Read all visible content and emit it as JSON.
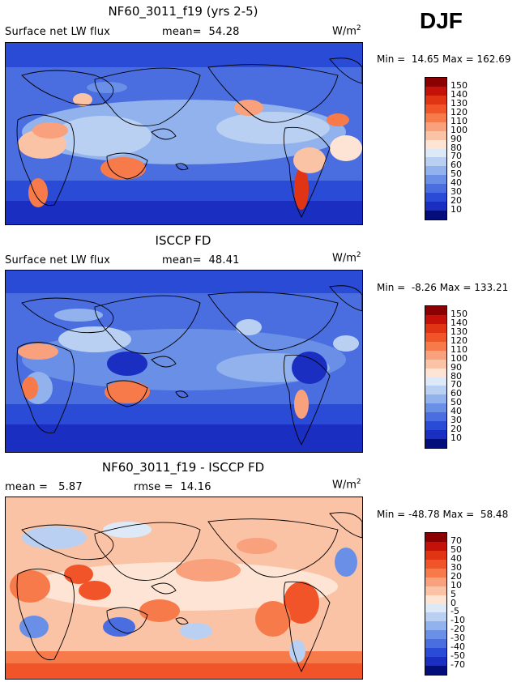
{
  "season": "DJF",
  "units_base": "W/m",
  "units_exp": "2",
  "panels": [
    {
      "title": "NF60_3011_f19 (yrs 2-5)",
      "left_label": "Surface net LW flux",
      "stat_label": "mean=",
      "stat_value": "54.28",
      "min_label": "Min =",
      "min_value": "14.65",
      "max_label": "Max =",
      "max_value": "162.69",
      "colorbar": [
        "150",
        "140",
        "130",
        "120",
        "110",
        "100",
        "90",
        "80",
        "70",
        "60",
        "50",
        "40",
        "30",
        "20",
        "10"
      ]
    },
    {
      "title": "ISCCP FD",
      "left_label": "Surface net LW flux",
      "stat_label": "mean=",
      "stat_value": "48.41",
      "min_label": "Min =",
      "min_value": "-8.26",
      "max_label": "Max =",
      "max_value": "133.21",
      "colorbar": [
        "150",
        "140",
        "130",
        "120",
        "110",
        "100",
        "90",
        "80",
        "70",
        "60",
        "50",
        "40",
        "30",
        "20",
        "10"
      ]
    },
    {
      "title": "NF60_3011_f19 - ISCCP FD",
      "left_label": "mean =",
      "left_value": "5.87",
      "stat_label": "rmse =",
      "stat_value": "14.16",
      "min_label": "Min =",
      "min_value": "-48.78",
      "max_label": "Max =",
      "max_value": "58.48",
      "colorbar": [
        "70",
        "50",
        "40",
        "30",
        "20",
        "10",
        "5",
        "0",
        "-5",
        "-10",
        "-20",
        "-30",
        "-40",
        "-50",
        "-70"
      ]
    }
  ],
  "colors": {
    "scale": [
      "#8b0000",
      "#c4120b",
      "#e03415",
      "#f2542a",
      "#f77a4a",
      "#f9a07c",
      "#fbc3a6",
      "#fde4d4",
      "#dde9f7",
      "#b9d0f2",
      "#91b2ec",
      "#6a8fe6",
      "#4a6de0",
      "#2a4bd6",
      "#1a2fc2",
      "#0b1a9a",
      "#040e7a"
    ],
    "land_line": "#000000"
  },
  "chart_data": [
    {
      "type": "heatmap",
      "title": "NF60_3011_f19 (yrs 2-5)",
      "variable": "Surface net LW flux",
      "mean": 54.28,
      "min": 14.65,
      "max": 162.69,
      "units": "W/m2",
      "season": "DJF",
      "contour_levels": [
        10,
        20,
        30,
        40,
        50,
        60,
        70,
        80,
        90,
        100,
        110,
        120,
        130,
        140,
        150
      ]
    },
    {
      "type": "heatmap",
      "title": "ISCCP FD",
      "variable": "Surface net LW flux",
      "mean": 48.41,
      "min": -8.26,
      "max": 133.21,
      "units": "W/m2",
      "season": "DJF",
      "contour_levels": [
        10,
        20,
        30,
        40,
        50,
        60,
        70,
        80,
        90,
        100,
        110,
        120,
        130,
        140,
        150
      ]
    },
    {
      "type": "heatmap",
      "title": "NF60_3011_f19 - ISCCP FD",
      "mean": 5.87,
      "rmse": 14.16,
      "min": -48.78,
      "max": 58.48,
      "units": "W/m2",
      "season": "DJF",
      "contour_levels": [
        -70,
        -50,
        -40,
        -30,
        -20,
        -10,
        -5,
        0,
        5,
        10,
        20,
        30,
        40,
        50,
        70
      ]
    }
  ]
}
